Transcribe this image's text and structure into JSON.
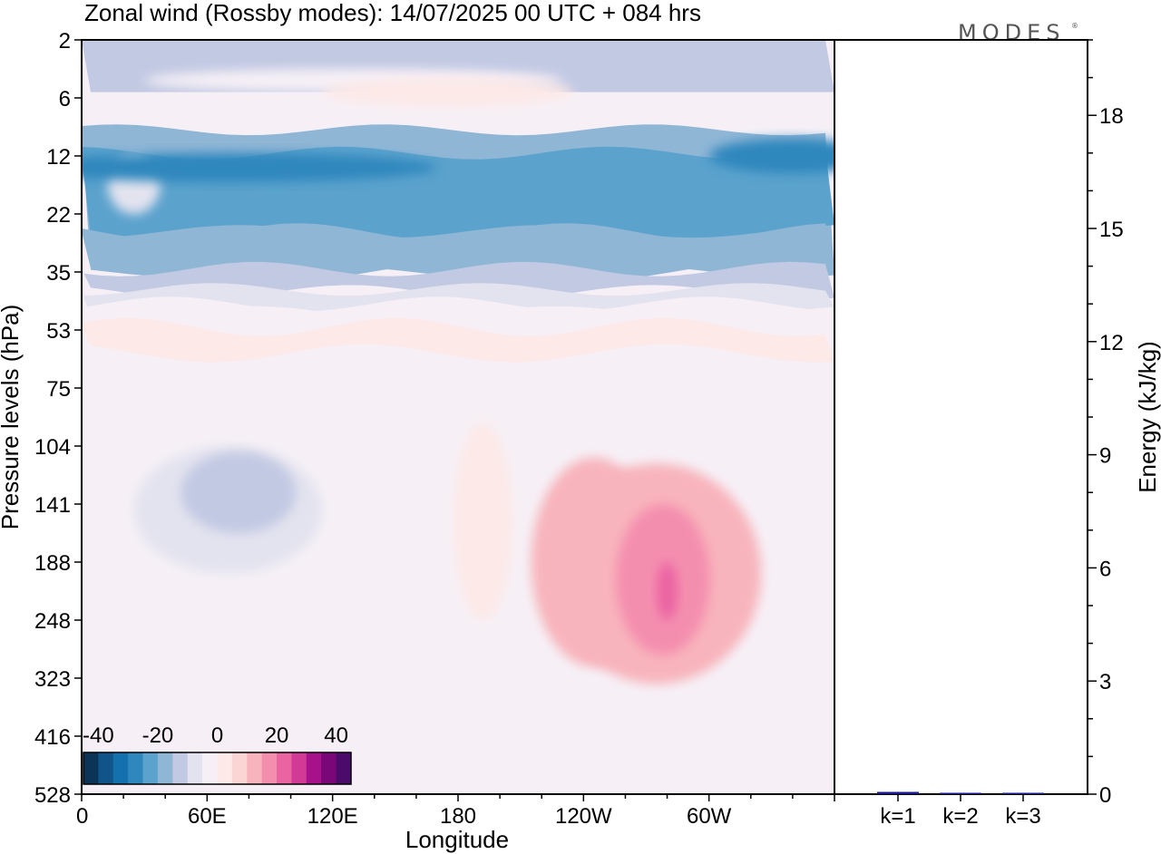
{
  "chart_data": [
    {
      "type": "heatmap",
      "title": "Zonal wind (Rossby modes):  14/07/2025  00 UTC  + 084 hrs",
      "xlabel": "Longitude",
      "ylabel": "Pressure levels (hPa)",
      "x_ticks": [
        "0",
        "60E",
        "120E",
        "180",
        "120W",
        "60W"
      ],
      "x_degrees": [
        0,
        60,
        120,
        180,
        240,
        300
      ],
      "x_range": [
        0,
        360
      ],
      "y_ticks": [
        "2",
        "6",
        "12",
        "22",
        "35",
        "53",
        "75",
        "104",
        "141",
        "188",
        "248",
        "323",
        "416",
        "528"
      ],
      "y_axis": "categorical pressure levels, 2 hPa at top",
      "colorbar": {
        "tick_labels": [
          "-40",
          "-20",
          "0",
          "20",
          "40"
        ],
        "tick_values": [
          -40,
          -20,
          0,
          20,
          40
        ],
        "range": [
          -45,
          45
        ],
        "step": 5,
        "colors": [
          "#0b3457",
          "#11548a",
          "#1571ad",
          "#2f87bd",
          "#5ba2cd",
          "#90b6d6",
          "#c2c9e3",
          "#e3e3ef",
          "#f6f0f6",
          "#fde9e8",
          "#fbd4d4",
          "#f8b4bc",
          "#f48eaf",
          "#ea64a2",
          "#d13a95",
          "#a7118a",
          "#7a0777",
          "#4b0b6a"
        ]
      },
      "features": [
        {
          "lon": 25,
          "level": 2.5,
          "lon_w": 25,
          "lev_h": 1.0,
          "value": -10
        },
        {
          "lon": 130,
          "level": 0.7,
          "lon_w": 200,
          "lev_h": 0.4,
          "value": -5
        },
        {
          "lon": 175,
          "level": 0.9,
          "lon_w": 120,
          "lev_h": 0.5,
          "value": 0
        },
        {
          "lon": 70,
          "level": 2.2,
          "lon_w": 200,
          "lev_h": 0.5,
          "value": -30
        },
        {
          "lon": 340,
          "level": 2.0,
          "lon_w": 80,
          "lev_h": 0.6,
          "value": -30
        },
        {
          "lon": 70,
          "level": 8.1,
          "lon_w": 90,
          "lev_h": 2.2,
          "value": -10
        },
        {
          "lon": 75,
          "level": 7.8,
          "lon_w": 55,
          "lev_h": 1.4,
          "value": -15
        },
        {
          "lon": 192,
          "level": 8.3,
          "lon_w": 28,
          "lev_h": 3.4,
          "value": 0
        },
        {
          "lon": 245,
          "level": 9.0,
          "lon_w": 60,
          "lev_h": 3.6,
          "value": 10
        },
        {
          "lon": 275,
          "level": 9.2,
          "lon_w": 100,
          "lev_h": 3.8,
          "value": 10
        },
        {
          "lon": 278,
          "level": 9.3,
          "lon_w": 45,
          "lev_h": 2.6,
          "value": 15
        },
        {
          "lon": 280,
          "level": 9.5,
          "lon_w": 10,
          "lev_h": 1.0,
          "value": 20
        }
      ]
    },
    {
      "type": "bar",
      "ylabel": "Energy (kJ/kg)",
      "categories": [
        "k=1",
        "k=2",
        "k=3"
      ],
      "values": [
        0.06,
        0.02,
        0.02
      ],
      "ylim": [
        0,
        20
      ],
      "y_ticks": [
        "0",
        "3",
        "6",
        "9",
        "12",
        "15",
        "18"
      ],
      "y_tick_values": [
        0,
        3,
        6,
        9,
        12,
        15,
        18
      ],
      "bar_color": "#1a1a8c"
    }
  ],
  "logo": "MODES"
}
